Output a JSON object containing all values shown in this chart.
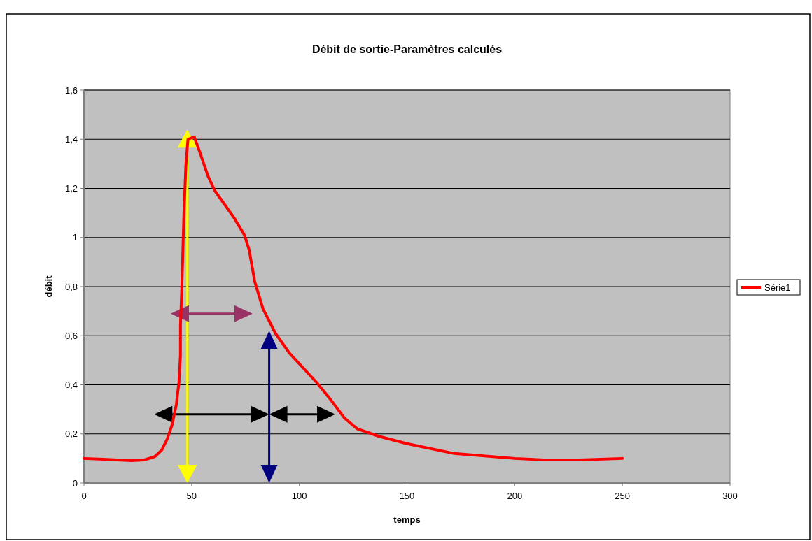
{
  "chart_data": {
    "type": "line",
    "title": "Débit de sortie-Paramètres calculés",
    "xlabel": "temps",
    "ylabel": "débit",
    "xlim": [
      0,
      300
    ],
    "xticks": [
      0,
      50,
      100,
      150,
      200,
      250,
      300
    ],
    "ylim": [
      0,
      1.6
    ],
    "yticks": [
      0,
      {
        "value": 0.2,
        "label": "0,2"
      },
      {
        "value": 0.4,
        "label": "0,4"
      },
      {
        "value": 0.6,
        "label": "0,6"
      },
      {
        "value": 0.8,
        "label": "0,8"
      },
      1,
      {
        "value": 1.2,
        "label": "1,2"
      },
      {
        "value": 1.4,
        "label": "1,4"
      },
      {
        "value": 1.6,
        "label": "1,6"
      }
    ],
    "grid": "y",
    "legend": "right",
    "marker": "none",
    "series": [
      {
        "name": "Série1",
        "color": "#ff0000",
        "x": [
          0,
          9,
          22,
          28,
          33,
          36.1,
          38.7,
          40.9,
          42.9,
          44.1,
          44.8,
          44.8,
          45.5,
          46.4,
          47.3,
          48.3,
          51.2,
          53.7,
          57.6,
          60.8,
          69.7,
          74.5,
          76.7,
          79.3,
          83.1,
          88.9,
          95.3,
          108,
          114.5,
          120.9,
          127,
          137,
          150,
          172,
          200,
          213.6,
          230,
          250
        ],
        "values": [
          0.1,
          0.097,
          0.091,
          0.094,
          0.108,
          0.134,
          0.18,
          0.236,
          0.32,
          0.41,
          0.52,
          0.64,
          0.81,
          1.09,
          1.29,
          1.4,
          1.41,
          1.35,
          1.25,
          1.19,
          1.08,
          1.01,
          0.95,
          0.82,
          0.71,
          0.61,
          0.53,
          0.41,
          0.34,
          0.265,
          0.22,
          0.19,
          0.16,
          0.12,
          0.1,
          0.094,
          0.094,
          0.1
        ]
      }
    ]
  }
}
